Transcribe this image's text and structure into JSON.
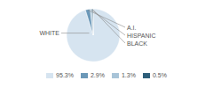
{
  "chart_data": {
    "type": "pie",
    "categories": [
      "WHITE",
      "A.I.",
      "HISPANIC",
      "BLACK"
    ],
    "values": [
      95.3,
      2.9,
      1.3,
      0.5
    ],
    "value_labels": [
      "95.3%",
      "2.9%",
      "1.3%",
      "0.5%"
    ],
    "colors": [
      "#d6e4f0",
      "#6b98b8",
      "#a8c4d8",
      "#2e5f7a"
    ],
    "legend": "bottom"
  }
}
